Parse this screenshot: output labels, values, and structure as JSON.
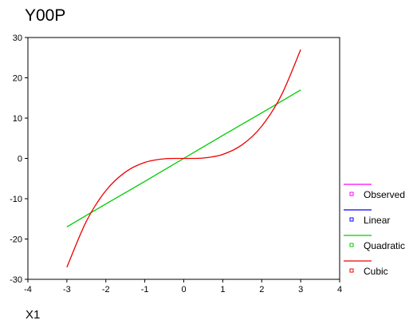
{
  "chart_data": {
    "type": "line",
    "title": "Y00P",
    "xlabel": "X1",
    "ylabel": "",
    "xlim": [
      -4,
      4
    ],
    "ylim": [
      -30,
      30
    ],
    "x_ticks": [
      -4,
      -3,
      -2,
      -1,
      0,
      1,
      2,
      3,
      4
    ],
    "y_ticks": [
      30,
      20,
      10,
      0,
      -10,
      -20,
      -30
    ],
    "grid": false,
    "legend_position": "right",
    "legend": [
      {
        "name": "Observed",
        "color": "#ff00ff",
        "marker": "square"
      },
      {
        "name": "Linear",
        "color": "#0000ff",
        "marker": "square"
      },
      {
        "name": "Quadratic",
        "color": "#00cc00",
        "marker": "square"
      },
      {
        "name": "Cubic",
        "color": "#ee0000",
        "marker": "square"
      }
    ],
    "series": [
      {
        "name": "Quadratic",
        "color": "#00cc00",
        "x": [
          -3,
          -2,
          -1,
          0,
          1,
          2,
          3
        ],
        "y": [
          -17,
          -11.3,
          -5.7,
          0,
          5.7,
          11.3,
          17
        ]
      },
      {
        "name": "Cubic",
        "color": "#ee0000",
        "x": [
          -3,
          -2.5,
          -2,
          -1.5,
          -1,
          -0.5,
          0,
          0.5,
          1,
          1.5,
          2,
          2.5,
          3
        ],
        "y": [
          -27,
          -15.6,
          -8,
          -3.4,
          -1,
          -0.1,
          0,
          0.1,
          1,
          3.4,
          8,
          15.6,
          27
        ]
      }
    ]
  }
}
